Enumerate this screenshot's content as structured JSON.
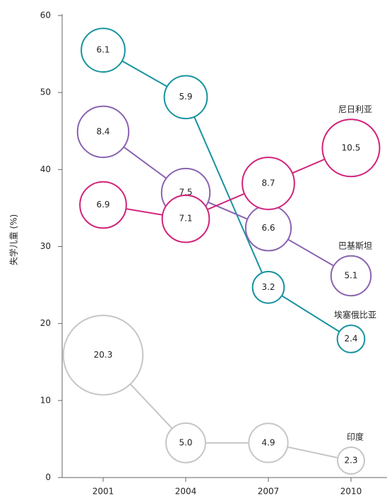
{
  "chart_data": {
    "type": "bubble-line",
    "ylabel": "失学儿童 (%)",
    "x": [
      "2001",
      "2004",
      "2007",
      "2010"
    ],
    "ylim": [
      0,
      60
    ],
    "yticks": [
      0,
      10,
      20,
      30,
      40,
      50,
      60
    ],
    "series": [
      {
        "name": "埃塞俄比亚",
        "color": "#17939f",
        "values": [
          55.5,
          49.4,
          24.7,
          18.0
        ],
        "sizes": [
          6.1,
          5.9,
          3.2,
          2.4
        ],
        "size_labels": [
          "6.1",
          "5.9",
          "3.2",
          "2.4"
        ]
      },
      {
        "name": "巴基斯坦",
        "color": "#8a63b0",
        "values": [
          44.9,
          37.0,
          32.4,
          26.2
        ],
        "sizes": [
          8.4,
          7.5,
          6.6,
          5.1
        ],
        "size_labels": [
          "8.4",
          "7.5",
          "6.6",
          "5.1"
        ]
      },
      {
        "name": "尼日利亚",
        "color": "#d1227a",
        "values": [
          35.4,
          33.6,
          38.2,
          42.8
        ],
        "sizes": [
          6.9,
          7.1,
          8.7,
          10.5
        ],
        "size_labels": [
          "6.9",
          "7.1",
          "8.7",
          "10.5"
        ]
      },
      {
        "name": "印度",
        "color": "#c6c6c6",
        "values": [
          15.9,
          4.5,
          4.5,
          2.2
        ],
        "sizes": [
          20.3,
          5.0,
          4.9,
          2.3
        ],
        "size_labels": [
          "20.3",
          "5.0",
          "4.9",
          "2.3"
        ]
      }
    ]
  }
}
